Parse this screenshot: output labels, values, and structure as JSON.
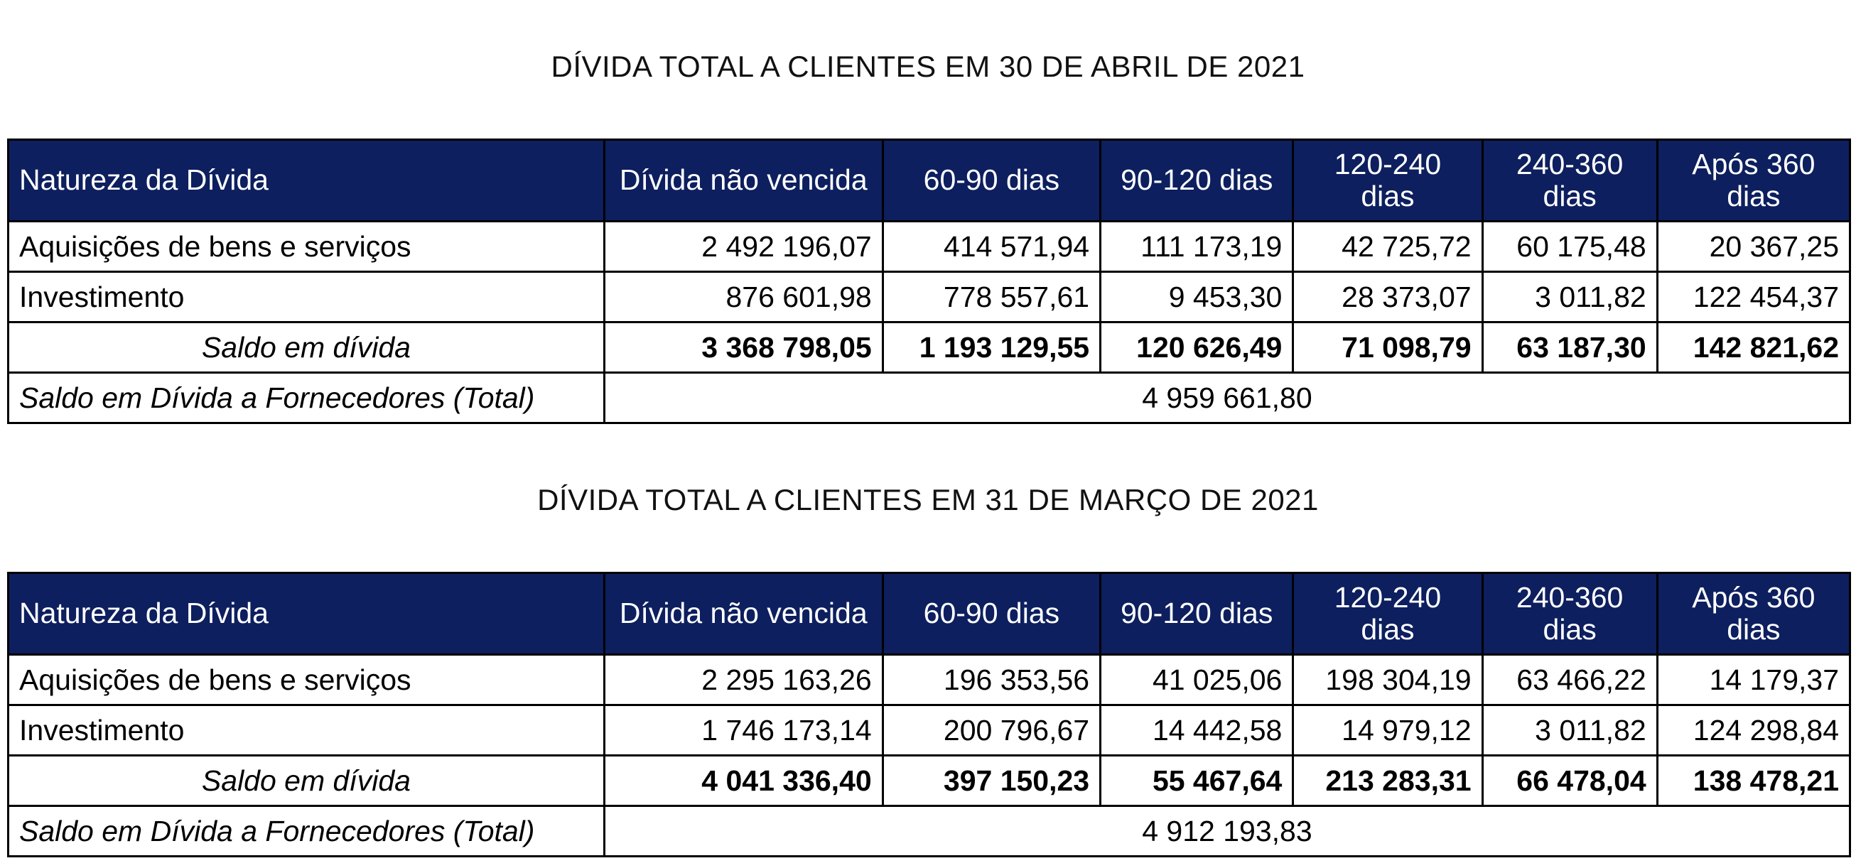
{
  "tables": [
    {
      "title": "DÍVIDA TOTAL A CLIENTES EM 30 DE ABRIL DE 2021",
      "headers": [
        "Natureza da Dívida",
        "Dívida não vencida",
        "60-90 dias",
        "90-120 dias",
        "120-240 dias",
        "240-360 dias",
        "Após 360 dias"
      ],
      "rows": [
        {
          "label": "Aquisições de bens e serviços",
          "values": [
            "2 492 196,07",
            "414 571,94",
            "111 173,19",
            "42 725,72",
            "60 175,48",
            "20 367,25"
          ]
        },
        {
          "label": "Investimento",
          "values": [
            "876 601,98",
            "778 557,61",
            "9 453,30",
            "28 373,07",
            "3 011,82",
            "122 454,37"
          ]
        }
      ],
      "saldo": {
        "label": "Saldo em dívida",
        "values": [
          "3 368 798,05",
          "1 193 129,55",
          "120 626,49",
          "71 098,79",
          "63 187,30",
          "142 821,62"
        ]
      },
      "total": {
        "label": "Saldo em Dívida a Fornecedores (Total)",
        "value": "4 959 661,80"
      }
    },
    {
      "title": "DÍVIDA TOTAL A CLIENTES EM 31 DE MARÇO DE 2021",
      "headers": [
        "Natureza da Dívida",
        "Dívida não vencida",
        "60-90 dias",
        "90-120 dias",
        "120-240 dias",
        "240-360 dias",
        "Após 360 dias"
      ],
      "rows": [
        {
          "label": "Aquisições de bens e serviços",
          "values": [
            "2 295 163,26",
            "196 353,56",
            "41 025,06",
            "198 304,19",
            "63 466,22",
            "14 179,37"
          ]
        },
        {
          "label": "Investimento",
          "values": [
            "1 746 173,14",
            "200 796,67",
            "14 442,58",
            "14 979,12",
            "3 011,82",
            "124 298,84"
          ]
        }
      ],
      "saldo": {
        "label": "Saldo em dívida",
        "values": [
          "4 041 336,40",
          "397 150,23",
          "55 467,64",
          "213 283,31",
          "66 478,04",
          "138 478,21"
        ]
      },
      "total": {
        "label": "Saldo em Dívida a Fornecedores (Total)",
        "value": "4 912 193,83"
      }
    }
  ],
  "colors": {
    "header_bg": "#0d1f5e",
    "header_text": "#ffffff",
    "border": "#000000"
  }
}
